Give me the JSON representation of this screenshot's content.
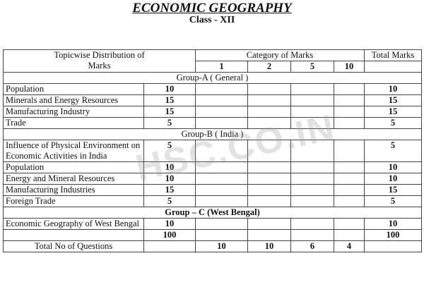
{
  "title": "ECONOMIC GEOGRAPHY",
  "subtitle": "Class - XII",
  "watermark": "HSC.CO.IN",
  "header": {
    "topic": "Topicwise Distribution of Marks",
    "category": "Category of Marks",
    "total": "Total Marks",
    "categories": [
      "1",
      "2",
      "5",
      "10"
    ]
  },
  "groups": [
    {
      "label": "Group-A ( General )",
      "rows": [
        {
          "topic": "Population",
          "marks": "10",
          "total": "10"
        },
        {
          "topic": "Minerals and Energy Resources",
          "marks": "15",
          "total": "15"
        },
        {
          "topic": "Manufacturing Industry",
          "marks": "15",
          "total": "15"
        },
        {
          "topic": "Trade",
          "marks": "5",
          "total": "5"
        }
      ]
    },
    {
      "label": "Group-B ( India )",
      "rows": [
        {
          "topic": "Influence of Physical Environment on Economic Activities in India",
          "marks": "5",
          "total": "5"
        },
        {
          "topic": "Population",
          "marks": "10",
          "total": "10"
        },
        {
          "topic": "Energy and Mineral Resources",
          "marks": "10",
          "total": "10"
        },
        {
          "topic": "Manufacturing Industries",
          "marks": "15",
          "total": "15"
        },
        {
          "topic": "Foreign Trade",
          "marks": "5",
          "total": "5"
        }
      ]
    },
    {
      "label": "Group – C (West Bengal)",
      "rows": [
        {
          "topic": "Economic Geography of West Bengal",
          "marks": "10",
          "total": "10"
        }
      ]
    }
  ],
  "sum_row": {
    "marks": "100",
    "total": "100"
  },
  "questions_row": {
    "label": "Total No of Questions",
    "counts": [
      "10",
      "10",
      "6",
      "4"
    ]
  }
}
